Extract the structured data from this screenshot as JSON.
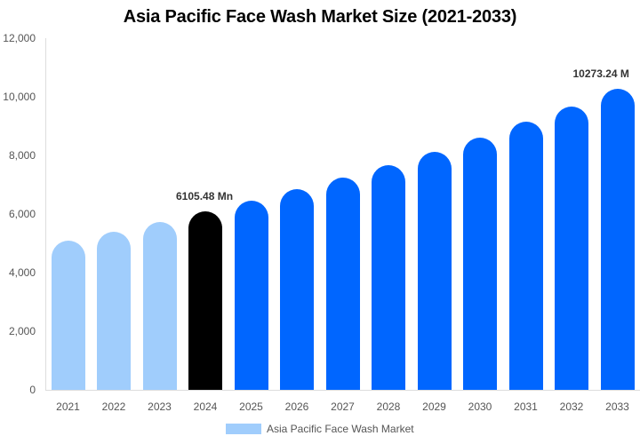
{
  "chart_data": {
    "type": "bar",
    "title": "Asia Pacific Face Wash Market Size (2021-2033)",
    "xlabel": "",
    "ylabel": "",
    "ylim": [
      0,
      12000
    ],
    "yticks": [
      "0",
      "2,000",
      "4,000",
      "6,000",
      "8,000",
      "10,000",
      "12,000"
    ],
    "categories": [
      "2021",
      "2022",
      "2023",
      "2024",
      "2025",
      "2026",
      "2027",
      "2028",
      "2029",
      "2030",
      "2031",
      "2032",
      "2033"
    ],
    "series": [
      {
        "name": "Asia Pacific Face Wash Market",
        "values": [
          5103,
          5407,
          5741,
          6105.48,
          6440,
          6835,
          7230,
          7655,
          8110,
          8597,
          9143,
          9660,
          10273.24
        ]
      }
    ],
    "annotations": [
      {
        "category": "2024",
        "text": "6105.48 Mn"
      },
      {
        "category": "2033",
        "text": "10273.24 M"
      }
    ],
    "colors": {
      "historical": "#a0cdfc",
      "base_year": "#000000",
      "forecast": "#0066ff"
    },
    "grid": false,
    "legend_position": "bottom"
  }
}
